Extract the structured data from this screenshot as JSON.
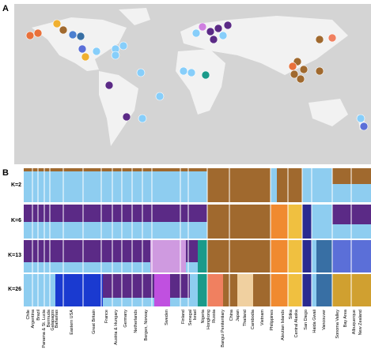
{
  "panel_a": {
    "label": "A"
  },
  "panel_b": {
    "label": "B",
    "rows": [
      "K=2",
      "K=6",
      "K=13",
      "K=26"
    ],
    "populations": [
      "Chile",
      "Argentina",
      "Brazil",
      "Panama & St. Lucia",
      "Bermuda",
      "Galapagos",
      "Bahamas",
      "Eastern USA",
      "Great Britain",
      "France",
      "Austria & Hungary",
      "Germany",
      "Netherlands",
      "Bergen, Norway",
      "Sweden",
      "Finland",
      "Senegal",
      "Israel",
      "Nigeria",
      "Hongkong",
      "Russia",
      "Bangui Penitentiary",
      "China",
      "Japan",
      "Thailand",
      "Cambodia",
      "Vietnam",
      "Philippines",
      "Aleutian Islands",
      "Sitka",
      "Central Alaska",
      "San Diego",
      "Haida Gwaii",
      "Vancouver",
      "Sonoma Valley",
      "Bay Area",
      "Albuquerque",
      "New Zealand"
    ]
  }
}
